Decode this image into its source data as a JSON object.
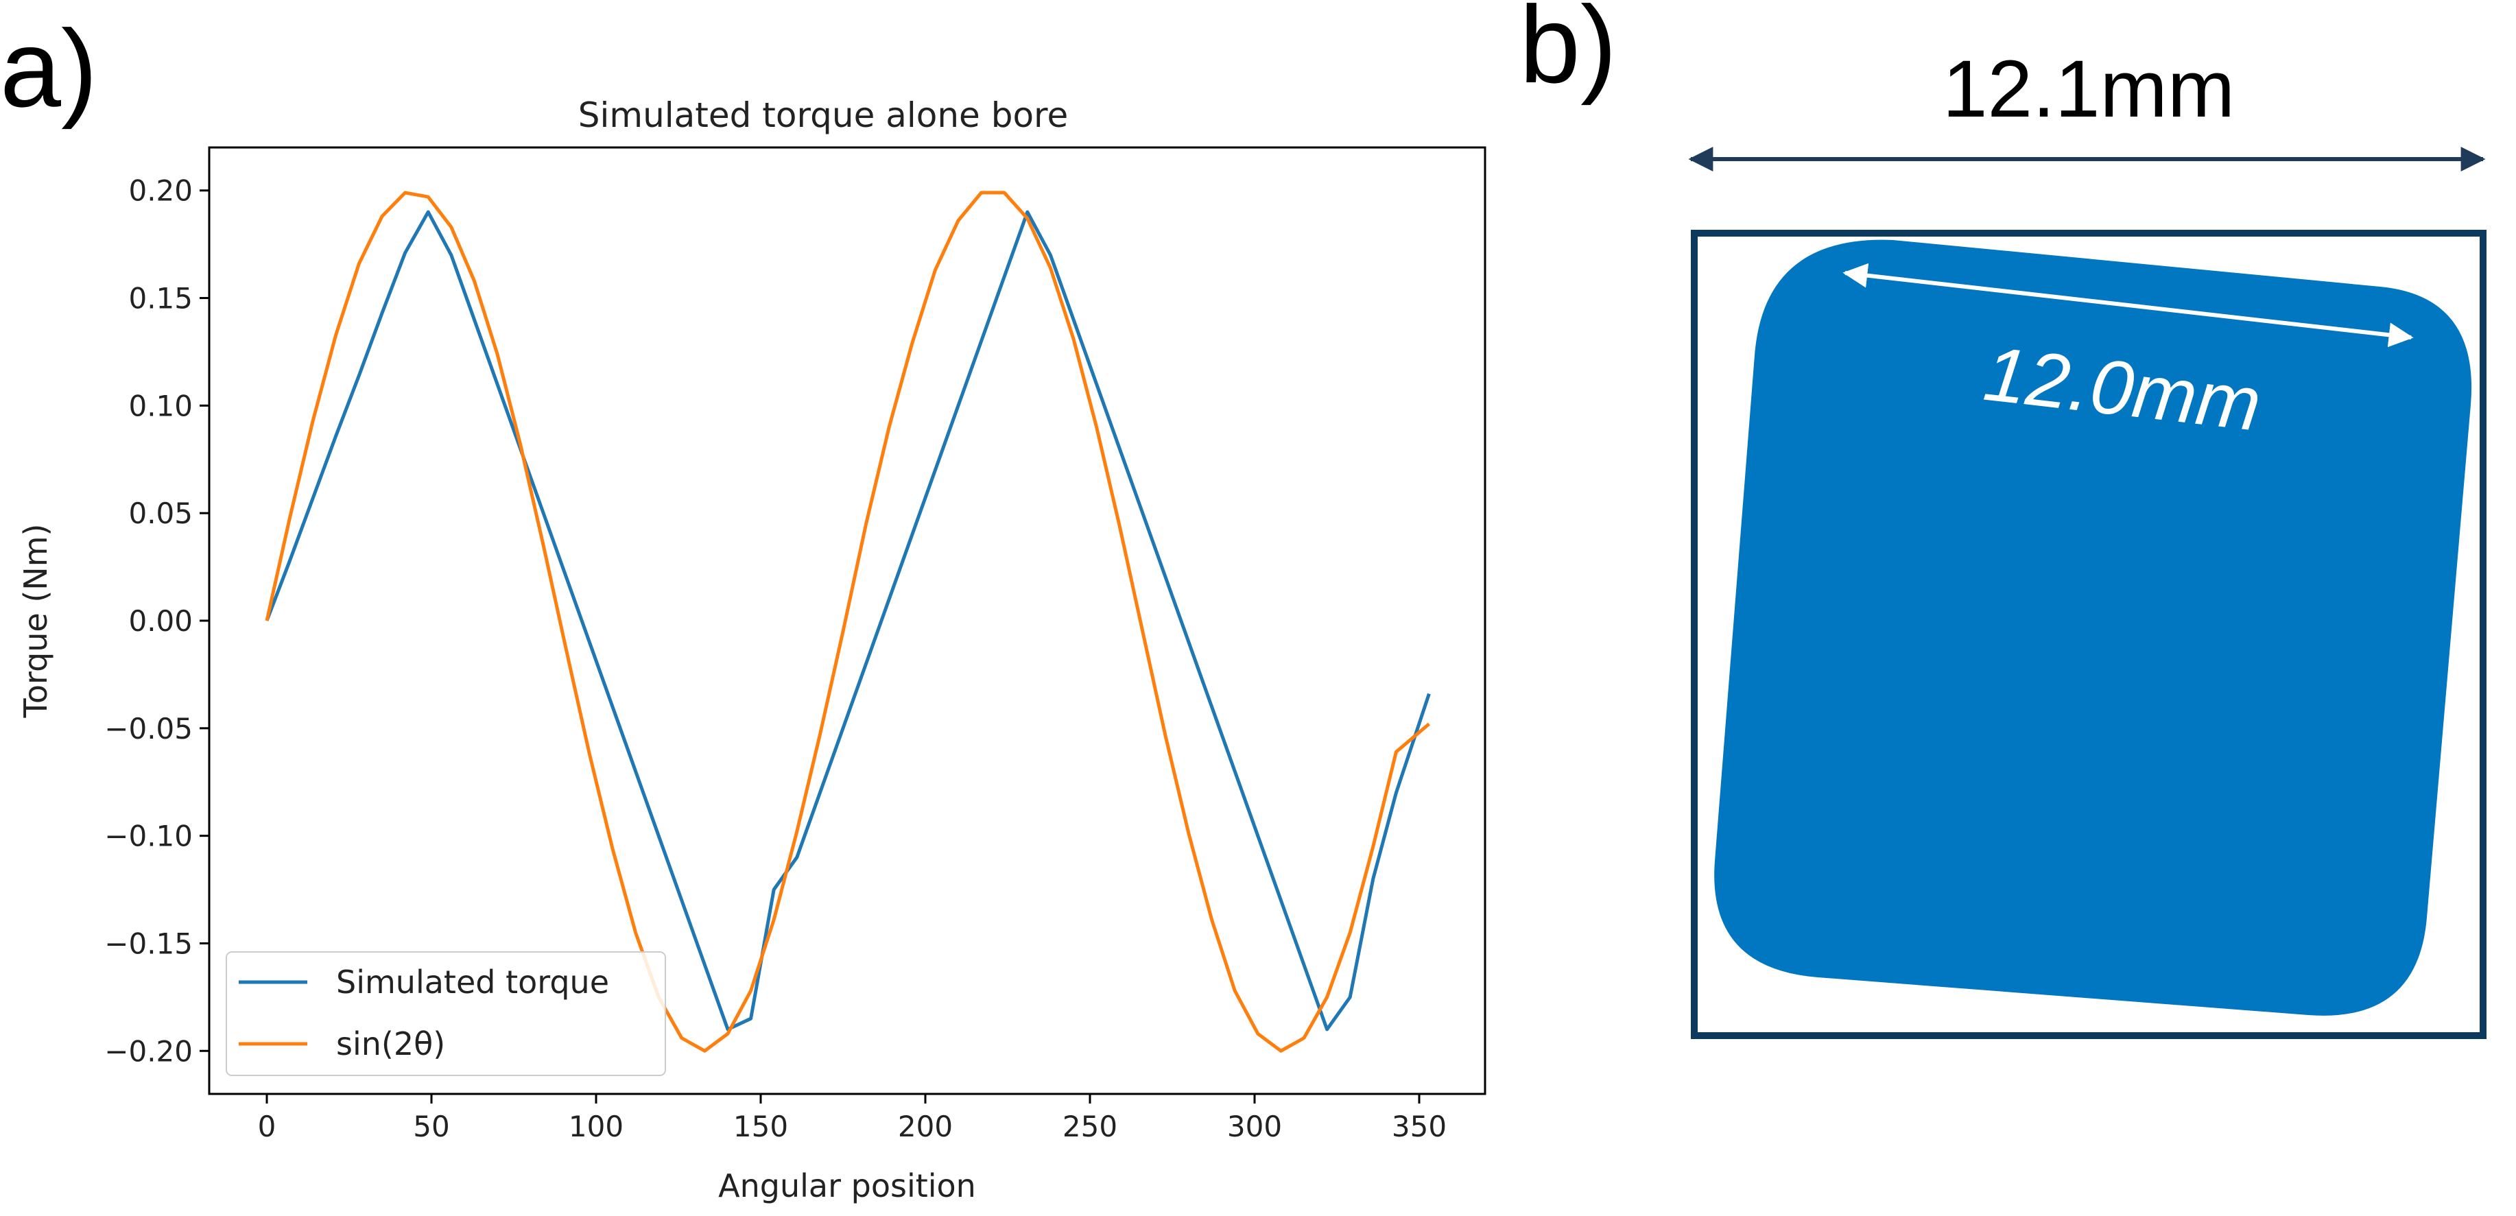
{
  "panels": {
    "a_label": "a)",
    "b_label": "b)"
  },
  "chart_data": {
    "type": "line",
    "title": "Simulated torque alone bore",
    "xlabel": "Angular position",
    "ylabel": "Torque (Nm)",
    "xlim": [
      -17.5,
      370
    ],
    "ylim": [
      -0.22,
      0.22
    ],
    "xticks": [
      0,
      50,
      100,
      150,
      200,
      250,
      300,
      350
    ],
    "yticks": [
      0.2,
      0.15,
      0.1,
      0.05,
      0.0,
      -0.05,
      -0.1,
      -0.15,
      -0.2
    ],
    "xtick_labels": [
      "0",
      "50",
      "100",
      "150",
      "200",
      "250",
      "300",
      "350"
    ],
    "ytick_labels": [
      "0.20",
      "0.15",
      "0.10",
      "0.05",
      "0.00",
      "−0.05",
      "−0.10",
      "−0.15",
      "−0.20"
    ],
    "grid": false,
    "legend_position": "lower-left",
    "series": [
      {
        "name": "Simulated torque",
        "color": "#1f77b4",
        "x": [
          0,
          7,
          14,
          21,
          28,
          35,
          42,
          49,
          56,
          63,
          70,
          77,
          84,
          91,
          98,
          105,
          112,
          119,
          126,
          133,
          140,
          147,
          154,
          161,
          168,
          175,
          182,
          189,
          196,
          203,
          210,
          217,
          224,
          231,
          238,
          245,
          252,
          259,
          266,
          273,
          280,
          287,
          294,
          301,
          308,
          315,
          322,
          329,
          336,
          343,
          353
        ],
        "y": [
          0.0,
          0.028,
          0.057,
          0.086,
          0.114,
          0.143,
          0.171,
          0.19,
          0.17,
          0.14,
          0.11,
          0.08,
          0.05,
          0.02,
          -0.01,
          -0.04,
          -0.07,
          -0.1,
          -0.13,
          -0.16,
          -0.19,
          -0.185,
          -0.125,
          -0.11,
          -0.08,
          -0.05,
          -0.02,
          0.01,
          0.04,
          0.07,
          0.1,
          0.13,
          0.16,
          0.19,
          0.17,
          0.14,
          0.11,
          0.08,
          0.05,
          0.02,
          -0.01,
          -0.04,
          -0.07,
          -0.1,
          -0.13,
          -0.16,
          -0.19,
          -0.175,
          -0.12,
          -0.08,
          -0.034
        ]
      },
      {
        "name": "sin(2θ)",
        "color": "#ff7f0e",
        "x": [
          0,
          7,
          14,
          21,
          28,
          35,
          42,
          49,
          56,
          63,
          70,
          77,
          84,
          91,
          98,
          105,
          112,
          119,
          126,
          133,
          140,
          147,
          154,
          161,
          168,
          175,
          182,
          189,
          196,
          203,
          210,
          217,
          224,
          231,
          238,
          245,
          252,
          259,
          266,
          273,
          280,
          287,
          294,
          301,
          308,
          315,
          322,
          329,
          336,
          343,
          353
        ],
        "y": [
          0.0,
          0.048,
          0.093,
          0.133,
          0.166,
          0.188,
          0.199,
          0.197,
          0.183,
          0.158,
          0.124,
          0.082,
          0.035,
          -0.014,
          -0.062,
          -0.106,
          -0.145,
          -0.175,
          -0.194,
          -0.2,
          -0.192,
          -0.172,
          -0.139,
          -0.098,
          -0.053,
          -0.005,
          0.045,
          0.09,
          0.129,
          0.163,
          0.186,
          0.199,
          0.199,
          0.187,
          0.164,
          0.131,
          0.09,
          0.044,
          -0.005,
          -0.054,
          -0.099,
          -0.139,
          -0.172,
          -0.192,
          -0.2,
          -0.194,
          -0.175,
          -0.145,
          -0.105,
          -0.061,
          -0.048
        ]
      }
    ]
  },
  "diagram_b": {
    "outer_dimension": "12.1mm",
    "inner_dimension": "12.0mm",
    "colors": {
      "square_fill": "#0077c0",
      "frame_stroke": "#0b3a5e",
      "arrow_dark": "#1f3b5a",
      "arrow_light": "#ffffff"
    }
  }
}
